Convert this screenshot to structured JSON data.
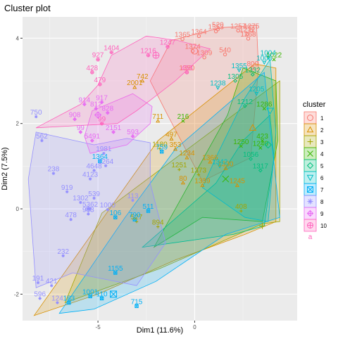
{
  "chart_data": {
    "type": "scatter",
    "title": "Cluster plot",
    "xlabel": "Dim1 (11.6%)",
    "ylabel": "Dim2 (7.5%)",
    "xlim": [
      -8.9,
      5.3
    ],
    "ylim": [
      -2.62,
      4.5
    ],
    "xticks": [
      -5,
      0
    ],
    "xtick_labels": [
      "-5",
      "0"
    ],
    "yticks": [
      -2,
      0,
      2,
      4
    ],
    "ytick_labels": [
      "-2",
      "0",
      "2",
      "4"
    ],
    "grid": true,
    "legend_position": "right",
    "legend_title": "cluster",
    "legend_items": [
      "1",
      "2",
      "3",
      "4",
      "5",
      "6",
      "7",
      "8",
      "9",
      "10"
    ],
    "legend_bottom_glyph": "a",
    "colors": [
      "#F8766D",
      "#D89000",
      "#A3A500",
      "#39B600",
      "#00BF7D",
      "#00BFC4",
      "#00B0F6",
      "#9590FF",
      "#E76BF3",
      "#FF62BC"
    ],
    "point_shapes": [
      "circle",
      "triangle",
      "plus",
      "cross",
      "diamond",
      "triangle-down",
      "boxed-cross",
      "star",
      "diamond-plus",
      "circle-plus"
    ],
    "centroids": [
      {
        "cluster": "1",
        "x": 0.0,
        "y": 3.7
      },
      {
        "cluster": "2",
        "x": 3.0,
        "y": 1.9
      },
      {
        "cluster": "3",
        "x": 3.5,
        "y": -0.4
      },
      {
        "cluster": "4",
        "x": 1.6,
        "y": 0.7
      },
      {
        "cluster": "5",
        "x": 3.8,
        "y": 1.5
      },
      {
        "cluster": "6",
        "x": 3.9,
        "y": 2.3
      },
      {
        "cluster": "7",
        "x": -4.2,
        "y": -2.0
      },
      {
        "cluster": "8",
        "x": -5.5,
        "y": 0.0
      },
      {
        "cluster": "9",
        "x": -5.0,
        "y": 2.2
      },
      {
        "cluster": "10",
        "x": -2.0,
        "y": 3.6
      }
    ],
    "hulls": [
      {
        "cluster": "1",
        "points": [
          [
            -2.3,
            3.0
          ],
          [
            -1.2,
            3.95
          ],
          [
            1.4,
            4.25
          ],
          [
            3.2,
            4.3
          ],
          [
            3.3,
            3.3
          ],
          [
            2.9,
            1.2
          ],
          [
            0.4,
            0.65
          ],
          [
            -1.4,
            2.2
          ],
          [
            -2.3,
            3.0
          ]
        ]
      },
      {
        "cluster": "2",
        "points": [
          [
            -8.3,
            -2.5
          ],
          [
            -5.0,
            -2.0
          ],
          [
            -1.0,
            -1.2
          ],
          [
            2.6,
            -0.6
          ],
          [
            4.2,
            -0.3
          ],
          [
            4.2,
            3.3
          ],
          [
            3.1,
            3.4
          ],
          [
            -1.9,
            1.6
          ],
          [
            -8.3,
            -2.5
          ]
        ]
      },
      {
        "cluster": "3",
        "points": [
          [
            -6.7,
            -2.2
          ],
          [
            -1.8,
            -1.4
          ],
          [
            3.5,
            -0.35
          ],
          [
            4.4,
            -0.3
          ],
          [
            4.4,
            3.0
          ],
          [
            2.0,
            2.2
          ],
          [
            -4.8,
            -0.1
          ],
          [
            -6.7,
            -2.2
          ]
        ]
      },
      {
        "cluster": "4",
        "points": [
          [
            -2.1,
            -0.9
          ],
          [
            0.4,
            -0.2
          ],
          [
            3.5,
            -0.3
          ],
          [
            4.3,
            1.6
          ],
          [
            4.2,
            3.0
          ],
          [
            2.5,
            3.3
          ],
          [
            1.7,
            2.2
          ],
          [
            -2.1,
            -0.9
          ]
        ]
      },
      {
        "cluster": "5",
        "points": [
          [
            -2.7,
            -0.9
          ],
          [
            2.0,
            -0.6
          ],
          [
            3.6,
            -0.4
          ],
          [
            4.1,
            1.2
          ],
          [
            3.9,
            2.2
          ],
          [
            2.5,
            1.6
          ],
          [
            1.1,
            0.6
          ],
          [
            -2.7,
            -0.9
          ]
        ]
      },
      {
        "cluster": "6",
        "points": [
          [
            0.4,
            0.5
          ],
          [
            2.6,
            -0.2
          ],
          [
            3.8,
            -0.3
          ],
          [
            4.2,
            1.8
          ],
          [
            3.9,
            3.5
          ],
          [
            2.6,
            2.6
          ],
          [
            1.2,
            1.3
          ],
          [
            0.4,
            0.5
          ]
        ]
      },
      {
        "cluster": "7",
        "points": [
          [
            -7.0,
            -2.45
          ],
          [
            -5.2,
            -2.35
          ],
          [
            -2.0,
            -1.7
          ],
          [
            1.6,
            -0.6
          ],
          [
            4.4,
            -0.2
          ],
          [
            3.6,
            3.2
          ],
          [
            -1.0,
            1.4
          ],
          [
            -3.6,
            -0.2
          ],
          [
            -7.0,
            -2.45
          ]
        ]
      },
      {
        "cluster": "8",
        "points": [
          [
            -8.2,
            -1.85
          ],
          [
            -6.3,
            -1.5
          ],
          [
            -3.0,
            -1.8
          ],
          [
            -1.5,
            -0.8
          ],
          [
            -2.3,
            0.6
          ],
          [
            -2.3,
            1.55
          ],
          [
            -3.5,
            1.65
          ],
          [
            -5.2,
            1.5
          ],
          [
            -8.2,
            1.8
          ],
          [
            -8.6,
            0.7
          ],
          [
            -8.2,
            -1.85
          ]
        ]
      },
      {
        "cluster": "9",
        "points": [
          [
            -5.4,
            1.3
          ],
          [
            -3.5,
            1.5
          ],
          [
            -2.3,
            2.0
          ],
          [
            -2.2,
            2.4
          ],
          [
            -3.2,
            2.7
          ],
          [
            -5.3,
            2.3
          ],
          [
            -5.7,
            1.7
          ],
          [
            -5.4,
            1.3
          ]
        ]
      },
      {
        "cluster": "10",
        "points": [
          [
            -8.2,
            1.9
          ],
          [
            -5.9,
            2.45
          ],
          [
            -5.0,
            2.9
          ],
          [
            -4.3,
            3.6
          ],
          [
            -2.5,
            4.05
          ],
          [
            -0.9,
            3.95
          ],
          [
            0.8,
            3.75
          ],
          [
            -1.0,
            3.0
          ],
          [
            -3.0,
            2.3
          ],
          [
            -4.0,
            2.0
          ],
          [
            -8.2,
            1.9
          ]
        ]
      }
    ],
    "labels": [
      {
        "cluster": "1",
        "points": [
          [
            1.2,
            4.21,
            "520"
          ],
          [
            1.1,
            4.16,
            "1353"
          ],
          [
            0.22,
            4.05,
            "1364"
          ],
          [
            -0.63,
            3.98,
            "1365"
          ],
          [
            2.25,
            4.18,
            "1257"
          ],
          [
            2.72,
            4.1,
            "1272"
          ],
          [
            2.94,
            4.18,
            "1275"
          ],
          [
            2.77,
            3.99,
            "1268"
          ],
          [
            1.57,
            3.62,
            "540"
          ],
          [
            0.5,
            3.55,
            "1309"
          ],
          [
            -0.1,
            3.7,
            "1374"
          ],
          [
            3.0,
            3.3,
            "800"
          ],
          [
            -0.4,
            3.2,
            "1350"
          ]
        ]
      },
      {
        "cluster": "2",
        "points": [
          [
            -2.7,
            3.0,
            "742"
          ],
          [
            -3.1,
            2.85,
            "2001"
          ],
          [
            -1.9,
            2.06,
            "711"
          ],
          [
            -1.2,
            1.64,
            "497"
          ],
          [
            -1.0,
            1.4,
            "353"
          ],
          [
            -0.4,
            1.2,
            "1234"
          ],
          [
            0.8,
            1.1,
            "1366"
          ],
          [
            1.6,
            0.95,
            "1330"
          ],
          [
            -0.6,
            0.61,
            "80"
          ],
          [
            0.4,
            0.55,
            "1339"
          ],
          [
            2.2,
            0.55,
            "1245"
          ]
        ]
      },
      {
        "cluster": "3",
        "points": [
          [
            -1.8,
            1.41,
            "1180"
          ],
          [
            0.2,
            0.8,
            "1373"
          ],
          [
            2.4,
            -0.05,
            "408"
          ],
          [
            -3.0,
            -0.3,
            "527"
          ],
          [
            -0.8,
            0.92,
            "1251"
          ],
          [
            -1.9,
            -0.42,
            "894"
          ]
        ]
      },
      {
        "cluster": "4",
        "points": [
          [
            -0.6,
            2.06,
            "216"
          ],
          [
            3.6,
            2.35,
            "1286"
          ],
          [
            3.5,
            1.6,
            "423"
          ],
          [
            2.4,
            1.47,
            "1250"
          ],
          [
            3.4,
            1.43,
            "1240"
          ],
          [
            4.1,
            3.5,
            "1022"
          ]
        ]
      },
      {
        "cluster": "5",
        "points": [
          [
            2.1,
            3.0,
            "1305"
          ],
          [
            3.0,
            3.15,
            "1332"
          ],
          [
            2.6,
            2.41,
            "1212"
          ],
          [
            2.9,
            1.17,
            "1056"
          ],
          [
            3.4,
            0.9,
            "1317"
          ]
        ]
      },
      {
        "cluster": "6",
        "points": [
          [
            3.8,
            3.55,
            "1004"
          ],
          [
            3.6,
            3.43,
            "1008"
          ],
          [
            1.2,
            2.84,
            "1238"
          ],
          [
            2.3,
            3.25,
            "1355"
          ],
          [
            1.3,
            1.0,
            "1342"
          ],
          [
            3.2,
            2.7,
            "1205"
          ]
        ]
      },
      {
        "cluster": "7",
        "points": [
          [
            -1.7,
            1.34,
            "759"
          ],
          [
            -4.9,
            1.12,
            "1364"
          ],
          [
            -4.1,
            -0.2,
            "106"
          ],
          [
            -3.1,
            -0.25,
            "790"
          ],
          [
            -2.4,
            -0.05,
            "511"
          ],
          [
            -3.0,
            -2.28,
            "715"
          ],
          [
            -4.8,
            -2.1,
            "110"
          ],
          [
            -4.1,
            -1.5,
            "1155"
          ],
          [
            -6.5,
            -2.2,
            "183"
          ],
          [
            -5.4,
            -2.05,
            "1001"
          ]
        ]
      },
      {
        "cluster": "8",
        "points": [
          [
            -8.2,
            2.16,
            "750"
          ],
          [
            -7.9,
            1.6,
            "562"
          ],
          [
            -7.3,
            0.83,
            "238"
          ],
          [
            -6.6,
            0.4,
            "919"
          ],
          [
            -5.9,
            0.15,
            "1302"
          ],
          [
            -6.4,
            -0.25,
            "478"
          ],
          [
            -5.4,
            0.7,
            "4123"
          ],
          [
            -4.7,
            1.3,
            "1981"
          ],
          [
            -4.6,
            1.01,
            "1264"
          ],
          [
            -5.2,
            0.9,
            "4648"
          ],
          [
            -5.2,
            0.25,
            "539"
          ],
          [
            -4.5,
            -0.02,
            "1000"
          ],
          [
            -5.4,
            0.0,
            "5362"
          ],
          [
            -5.5,
            -0.12,
            "963"
          ],
          [
            -3.2,
            0.2,
            "113"
          ],
          [
            -6.8,
            -1.1,
            "232"
          ],
          [
            -8.1,
            -1.73,
            "191"
          ],
          [
            -7.4,
            -1.8,
            "421"
          ],
          [
            -8.0,
            -2.1,
            "596"
          ],
          [
            -7.1,
            -2.2,
            "124"
          ]
        ]
      },
      {
        "cluster": "9",
        "points": [
          [
            -5.7,
            2.45,
            "914"
          ],
          [
            -4.8,
            2.5,
            "917"
          ],
          [
            -5.1,
            2.35,
            "812"
          ],
          [
            -4.5,
            2.25,
            "828"
          ],
          [
            -6.2,
            2.1,
            "908"
          ],
          [
            -5.9,
            1.8,
            "99"
          ],
          [
            -5.3,
            1.6,
            "5491"
          ],
          [
            -4.2,
            1.8,
            "2151"
          ],
          [
            -3.2,
            1.7,
            "593"
          ]
        ]
      },
      {
        "cluster": "10",
        "points": [
          [
            -4.3,
            3.67,
            "1404"
          ],
          [
            -5.0,
            3.5,
            "927"
          ],
          [
            -5.3,
            3.2,
            "428"
          ],
          [
            -4.9,
            2.92,
            "479"
          ],
          [
            -4.8,
            2.0,
            "99"
          ],
          [
            -2.4,
            3.6,
            "1216"
          ],
          [
            -1.4,
            3.8,
            "1247"
          ],
          [
            -0.4,
            3.2,
            "453"
          ]
        ]
      }
    ]
  }
}
